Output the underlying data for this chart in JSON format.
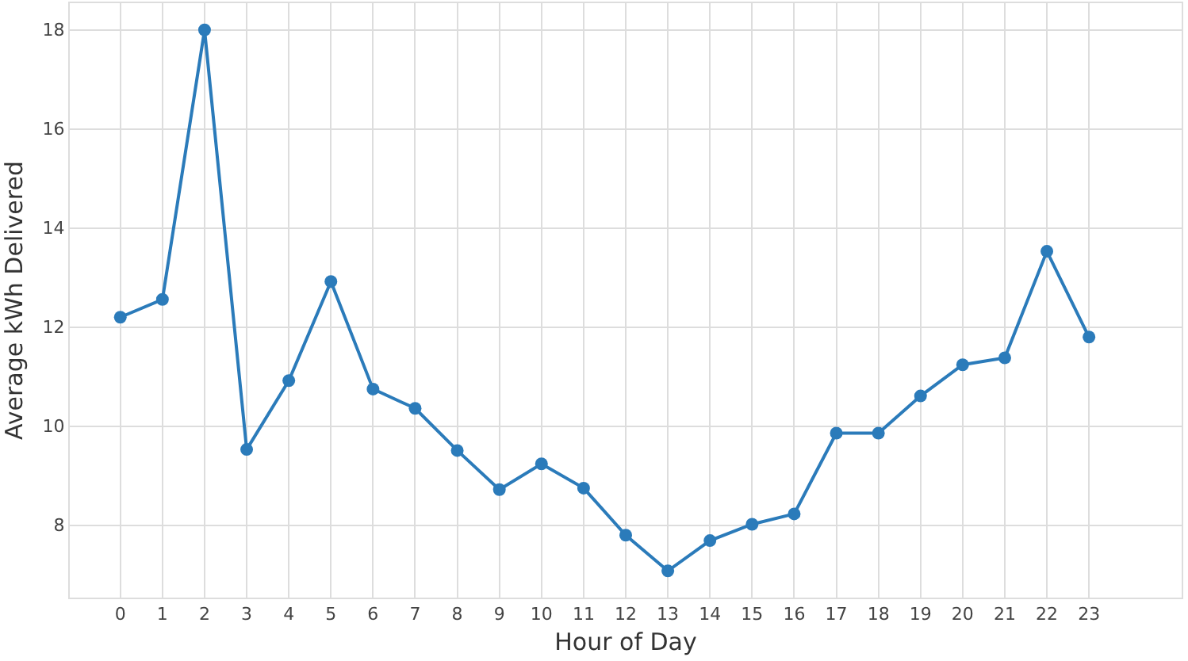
{
  "chart_data": {
    "type": "line",
    "xlabel": "Hour of Day",
    "ylabel": "Average kWh Delivered",
    "x": [
      0,
      1,
      2,
      3,
      4,
      5,
      6,
      7,
      8,
      9,
      10,
      11,
      12,
      13,
      14,
      15,
      16,
      17,
      18,
      19,
      20,
      21,
      22,
      23
    ],
    "xlim": [
      -1.2,
      25.2
    ],
    "xticks": [
      0,
      1,
      2,
      3,
      4,
      5,
      6,
      7,
      8,
      9,
      10,
      11,
      12,
      13,
      14,
      15,
      16,
      17,
      18,
      19,
      20,
      21,
      22,
      23
    ],
    "ylim": [
      6.54,
      18.54
    ],
    "yticks": [
      8,
      10,
      12,
      14,
      16,
      18
    ],
    "series": [
      {
        "color": "#2b7bba",
        "values": [
          12.2,
          12.56,
          18.0,
          9.53,
          10.92,
          12.92,
          10.75,
          10.36,
          9.51,
          8.72,
          9.24,
          8.75,
          7.8,
          7.08,
          7.69,
          8.02,
          8.23,
          9.86,
          9.86,
          10.61,
          11.24,
          11.38,
          13.53,
          11.8
        ]
      }
    ],
    "grid": true,
    "marker": "circle",
    "line_style": "solid",
    "legend": false
  }
}
